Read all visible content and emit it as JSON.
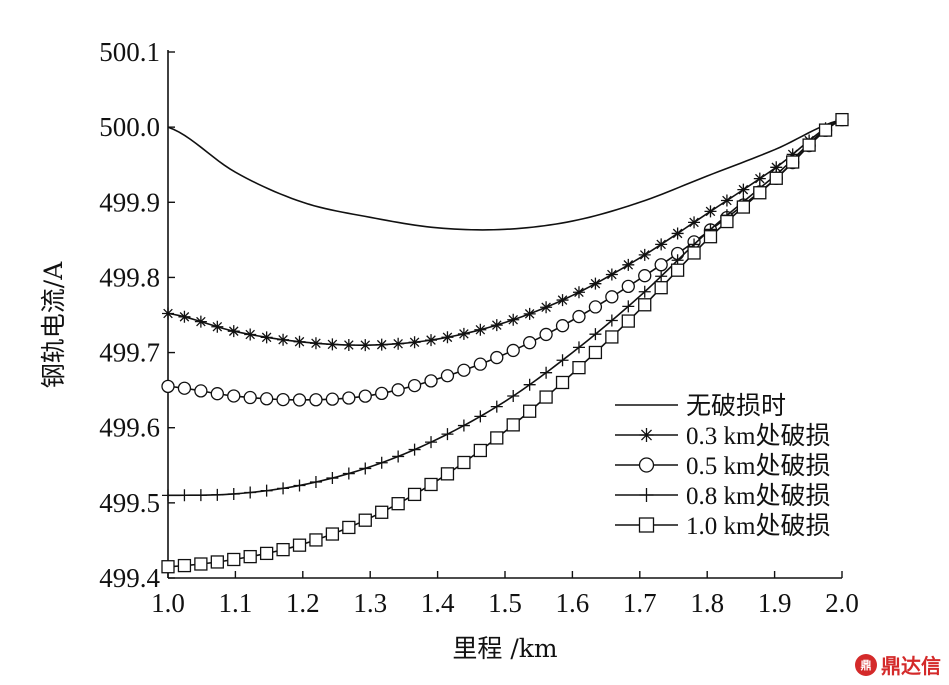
{
  "chart_data": {
    "type": "line",
    "title": "",
    "xlabel": "里程 /km",
    "ylabel": "钢轨电流/A",
    "xlim": [
      1.0,
      2.0
    ],
    "ylim": [
      499.4,
      500.1
    ],
    "xticks": [
      "1.0",
      "1.1",
      "1.2",
      "1.3",
      "1.4",
      "1.5",
      "1.6",
      "1.7",
      "1.8",
      "1.9",
      "2.0"
    ],
    "yticks": [
      "499.4",
      "499.5",
      "499.6",
      "499.7",
      "499.8",
      "499.9",
      "500.0",
      "500.1"
    ],
    "legend_position": "right-middle",
    "grid": false,
    "series": [
      {
        "name": "无破损时",
        "marker": "none",
        "x": [
          1.0,
          1.1,
          1.2,
          1.3,
          1.4,
          1.5,
          1.6,
          1.7,
          1.8,
          1.9,
          2.0
        ],
        "values": [
          500.0,
          499.94,
          499.9,
          499.88,
          499.866,
          499.864,
          499.875,
          499.9,
          499.935,
          499.97,
          500.01
        ]
      },
      {
        "name": "0.3 km处破损",
        "marker": "asterisk",
        "x": [
          1.0,
          1.1,
          1.2,
          1.3,
          1.4,
          1.5,
          1.6,
          1.7,
          1.8,
          1.9,
          2.0
        ],
        "values": [
          499.752,
          499.728,
          499.714,
          499.71,
          499.718,
          499.74,
          499.776,
          499.826,
          499.885,
          499.945,
          500.01
        ]
      },
      {
        "name": "0.5 km处破损",
        "marker": "circle",
        "x": [
          1.0,
          1.1,
          1.2,
          1.3,
          1.4,
          1.5,
          1.6,
          1.7,
          1.8,
          1.9,
          2.0
        ],
        "values": [
          499.655,
          499.642,
          499.637,
          499.643,
          499.665,
          499.698,
          499.743,
          499.798,
          499.86,
          499.93,
          500.01
        ]
      },
      {
        "name": "0.8 km处破损",
        "marker": "plus",
        "x": [
          1.0,
          1.1,
          1.2,
          1.3,
          1.4,
          1.5,
          1.6,
          1.7,
          1.8,
          1.9,
          2.0
        ],
        "values": [
          499.51,
          499.512,
          499.524,
          499.548,
          499.585,
          499.635,
          499.7,
          499.775,
          499.86,
          499.935,
          500.01
        ]
      },
      {
        "name": "1.0 km处破损",
        "marker": "square",
        "x": [
          1.0,
          1.1,
          1.2,
          1.3,
          1.4,
          1.5,
          1.6,
          1.7,
          1.8,
          1.9,
          2.0
        ],
        "values": [
          499.415,
          499.425,
          499.445,
          499.48,
          499.53,
          499.595,
          499.672,
          499.757,
          499.85,
          499.93,
          500.01
        ]
      }
    ]
  },
  "watermark": {
    "logo_icon": "dingdaxin-logo-icon",
    "text": "鼎达信"
  }
}
